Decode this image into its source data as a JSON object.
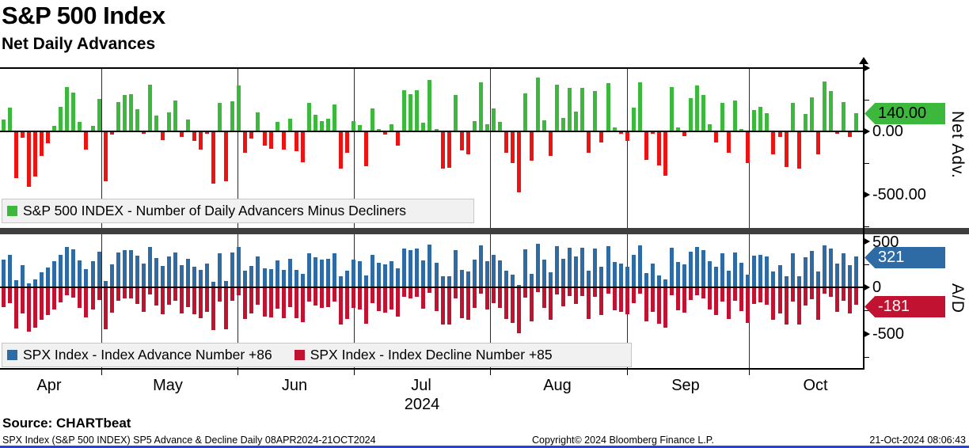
{
  "header": {
    "title": "S&P 500 Index",
    "subtitle": "Net Daily Advances"
  },
  "top_panel": {
    "legend_label": "S&P 500 INDEX - Number of Daily Advancers Minus Decliners",
    "axis_title": "Net Adv.",
    "last_value_tag": "140.00",
    "tick_labels": [
      "0.00",
      "-500.00"
    ]
  },
  "bottom_panel": {
    "legend_advance": "SPX Index - Index Advance Number +86",
    "legend_decline": "SPX Index - Index Decline Number +85",
    "axis_title": "A/D",
    "advance_tag": "321",
    "decline_tag": "-181",
    "tick_labels": [
      "500",
      "0",
      "-500"
    ]
  },
  "x_axis": {
    "months": [
      "Apr",
      "May",
      "Jun",
      "Jul",
      "Aug",
      "Sep",
      "Oct"
    ],
    "year": "2024"
  },
  "footer": {
    "source": "Source: CHARTbeat",
    "description": "SPX Index (S&P 500 INDEX) SP5 Advance & Decline  Daily 08APR2024-21OCT2024",
    "copyright": "Copyright© 2024 Bloomberg Finance L.P.",
    "timestamp": "21-Oct-2024 08:06:43"
  },
  "colors": {
    "advancers_green": "#3cb83c",
    "decliners_red": "#ee1313",
    "advance_blue": "#2e6aa3",
    "decline_crimson": "#c11231",
    "separator_gray": "#3e3e3e",
    "legend_bg": "#f1f1f1",
    "bottom_strip_blue": "#2744d8"
  },
  "chart_data": [
    {
      "type": "bar",
      "title": "S&P 500 INDEX - Number of Daily Advancers Minus Decliners",
      "ylabel": "Net Adv.",
      "period": "Daily 08APR2024-21OCT2024",
      "ylim": [
        -760,
        535
      ],
      "tick_interval": 250,
      "labeled_ticks": [
        0,
        -500
      ],
      "last_value": 140,
      "values": [
        85,
        180,
        -365,
        -45,
        -430,
        -350,
        -187,
        -85,
        38,
        186,
        345,
        300,
        70,
        -135,
        38,
        250,
        -390,
        -20,
        225,
        280,
        288,
        167,
        -10,
        360,
        118,
        -65,
        143,
        237,
        -40,
        90,
        -70,
        -140,
        -15,
        -404,
        218,
        -385,
        230,
        355,
        -165,
        -50,
        145,
        -105,
        -132,
        66,
        -139,
        94,
        -147,
        -235,
        216,
        124,
        77,
        92,
        209,
        -286,
        -165,
        75,
        45,
        -271,
        177,
        5,
        -20,
        49,
        -105,
        318,
        288,
        316,
        60,
        402,
        5,
        -286,
        -280,
        284,
        -143,
        -175,
        77,
        380,
        49,
        177,
        70,
        -165,
        -245,
        -474,
        295,
        -222,
        419,
        81,
        -190,
        365,
        103,
        338,
        152,
        338,
        -165,
        310,
        -79,
        376,
        28,
        -15,
        -68,
        184,
        380,
        -218,
        -15,
        -261,
        -346,
        342,
        24,
        -30,
        255,
        357,
        281,
        47,
        -81,
        218,
        -165,
        235,
        15,
        -241,
        160,
        186,
        139,
        -177,
        -38,
        -278,
        218,
        -288,
        132,
        260,
        -177,
        385,
        310,
        -8,
        224,
        -38,
        140
      ]
    },
    {
      "type": "bar",
      "title": "SPX Advance & Decline",
      "ylabel": "A/D",
      "ylim": [
        -900,
        575
      ],
      "labeled_ticks": [
        500,
        0,
        -500
      ],
      "series": [
        {
          "name": "SPX Index - Index Advance Number",
          "last_value": 321,
          "values": [
            294,
            341,
            69,
            229,
            36,
            76,
            158,
            209,
            270,
            344,
            424,
            401,
            286,
            184,
            270,
            376,
            56,
            241,
            364,
            391,
            395,
            335,
            246,
            431,
            310,
            219,
            323,
            370,
            231,
            296,
            216,
            181,
            244,
            49,
            360,
            59,
            366,
            429,
            169,
            226,
            324,
            199,
            185,
            284,
            182,
            298,
            178,
            134,
            359,
            313,
            290,
            297,
            356,
            108,
            169,
            289,
            274,
            116,
            340,
            254,
            241,
            276,
            199,
            410,
            395,
            409,
            281,
            452,
            254,
            108,
            111,
            393,
            180,
            164,
            290,
            441,
            276,
            340,
            286,
            169,
            129,
            14,
            399,
            140,
            461,
            292,
            156,
            434,
            303,
            420,
            327,
            420,
            169,
            406,
            212,
            439,
            265,
            244,
            217,
            343,
            441,
            142,
            244,
            121,
            78,
            422,
            263,
            236,
            379,
            430,
            392,
            275,
            211,
            360,
            169,
            369,
            259,
            131,
            331,
            344,
            321,
            163,
            232,
            112,
            360,
            107,
            317,
            381,
            163,
            444,
            406,
            247,
            363,
            232,
            321
          ]
        },
        {
          "name": "SPX Index - Index Decline Number",
          "last_value": -181,
          "values": [
            -209,
            -161,
            -434,
            -274,
            -466,
            -426,
            -345,
            -294,
            -232,
            -158,
            -79,
            -101,
            -216,
            -319,
            -232,
            -126,
            -446,
            -261,
            -139,
            -111,
            -107,
            -168,
            -256,
            -71,
            -192,
            -284,
            -180,
            -133,
            -271,
            -206,
            -286,
            -321,
            -259,
            -453,
            -142,
            -444,
            -136,
            -74,
            -334,
            -276,
            -179,
            -304,
            -317,
            -218,
            -321,
            -204,
            -325,
            -369,
            -143,
            -189,
            -213,
            -205,
            -147,
            -394,
            -334,
            -214,
            -229,
            -387,
            -163,
            -249,
            -261,
            -227,
            -304,
            -92,
            -107,
            -93,
            -221,
            -50,
            -249,
            -394,
            -391,
            -109,
            -323,
            -339,
            -213,
            -61,
            -227,
            -163,
            -216,
            -334,
            -374,
            -488,
            -104,
            -362,
            -42,
            -211,
            -346,
            -69,
            -200,
            -82,
            -175,
            -82,
            -334,
            -96,
            -291,
            -63,
            -237,
            -259,
            -285,
            -159,
            -61,
            -360,
            -259,
            -382,
            -424,
            -80,
            -239,
            -266,
            -124,
            -73,
            -111,
            -228,
            -292,
            -142,
            -334,
            -134,
            -244,
            -372,
            -171,
            -158,
            -182,
            -340,
            -270,
            -390,
            -142,
            -395,
            -185,
            -121,
            -340,
            -59,
            -96,
            -255,
            -139,
            -270,
            -181
          ]
        }
      ]
    }
  ]
}
